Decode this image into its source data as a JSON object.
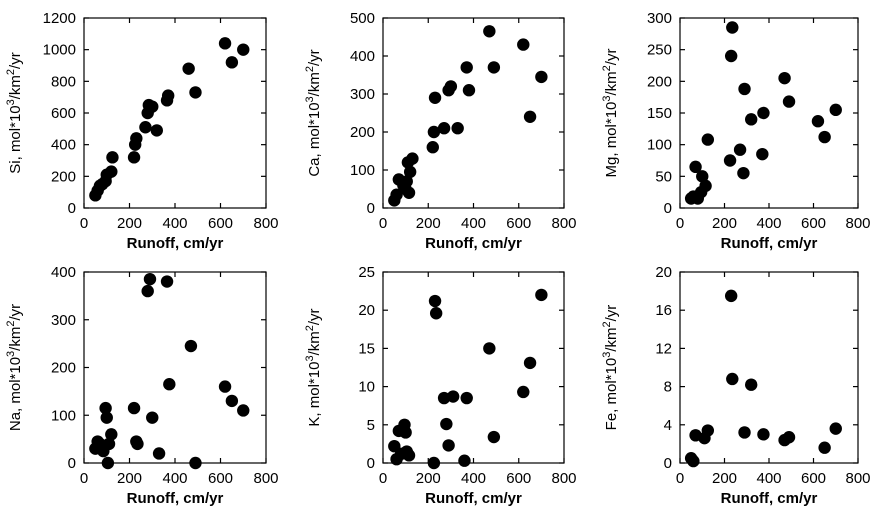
{
  "chart_data": [
    {
      "type": "scatter",
      "xlabel": "Runoff, cm/yr",
      "ylabel": {
        "pre": "Si, mol*10",
        "sup1": "3",
        "mid": "/km",
        "sup2": "2",
        "post": "/yr"
      },
      "xlim": [
        0,
        800
      ],
      "ylim": [
        0,
        1200
      ],
      "xticks": [
        0,
        200,
        400,
        600,
        800
      ],
      "yticks": [
        0,
        200,
        400,
        600,
        800,
        1000,
        1200
      ],
      "points": [
        [
          50,
          80
        ],
        [
          60,
          110
        ],
        [
          70,
          140
        ],
        [
          80,
          150
        ],
        [
          95,
          170
        ],
        [
          100,
          210
        ],
        [
          120,
          230
        ],
        [
          125,
          320
        ],
        [
          220,
          320
        ],
        [
          225,
          400
        ],
        [
          230,
          440
        ],
        [
          270,
          510
        ],
        [
          280,
          600
        ],
        [
          285,
          650
        ],
        [
          300,
          640
        ],
        [
          320,
          490
        ],
        [
          365,
          680
        ],
        [
          370,
          710
        ],
        [
          460,
          880
        ],
        [
          490,
          730
        ],
        [
          620,
          1040
        ],
        [
          650,
          920
        ],
        [
          700,
          1000
        ]
      ]
    },
    {
      "type": "scatter",
      "xlabel": "Runoff, cm/yr",
      "ylabel": {
        "pre": "Ca, mol*10",
        "sup1": "3",
        "mid": "/km",
        "sup2": "2",
        "post": "/yr"
      },
      "xlim": [
        0,
        800
      ],
      "ylim": [
        0,
        500
      ],
      "xticks": [
        0,
        200,
        400,
        600,
        800
      ],
      "yticks": [
        0,
        100,
        200,
        300,
        400,
        500
      ],
      "points": [
        [
          50,
          20
        ],
        [
          60,
          35
        ],
        [
          70,
          75
        ],
        [
          90,
          60
        ],
        [
          100,
          50
        ],
        [
          105,
          70
        ],
        [
          110,
          120
        ],
        [
          115,
          40
        ],
        [
          120,
          95
        ],
        [
          130,
          130
        ],
        [
          220,
          160
        ],
        [
          225,
          200
        ],
        [
          230,
          290
        ],
        [
          270,
          210
        ],
        [
          290,
          310
        ],
        [
          300,
          320
        ],
        [
          330,
          210
        ],
        [
          370,
          370
        ],
        [
          380,
          310
        ],
        [
          470,
          465
        ],
        [
          490,
          370
        ],
        [
          620,
          430
        ],
        [
          650,
          240
        ],
        [
          700,
          345
        ]
      ]
    },
    {
      "type": "scatter",
      "xlabel": "Runoff, cm/yr",
      "ylabel": {
        "pre": "Mg, mol*10",
        "sup1": "3",
        "mid": "/km",
        "sup2": "2",
        "post": "/yr"
      },
      "xlim": [
        0,
        800
      ],
      "ylim": [
        0,
        300
      ],
      "xticks": [
        0,
        200,
        400,
        600,
        800
      ],
      "yticks": [
        0,
        50,
        100,
        150,
        200,
        250,
        300
      ],
      "points": [
        [
          50,
          15
        ],
        [
          60,
          18
        ],
        [
          70,
          65
        ],
        [
          80,
          15
        ],
        [
          95,
          25
        ],
        [
          100,
          50
        ],
        [
          115,
          35
        ],
        [
          125,
          108
        ],
        [
          225,
          75
        ],
        [
          230,
          240
        ],
        [
          235,
          285
        ],
        [
          270,
          92
        ],
        [
          285,
          55
        ],
        [
          290,
          188
        ],
        [
          320,
          140
        ],
        [
          370,
          85
        ],
        [
          375,
          150
        ],
        [
          470,
          205
        ],
        [
          490,
          168
        ],
        [
          620,
          137
        ],
        [
          650,
          112
        ],
        [
          700,
          155
        ]
      ]
    },
    {
      "type": "scatter",
      "xlabel": "Runoff, cm/yr",
      "ylabel": {
        "pre": "Na, mol*10",
        "sup1": "3",
        "mid": "/km",
        "sup2": "2",
        "post": "/yr"
      },
      "xlim": [
        0,
        800
      ],
      "ylim": [
        0,
        400
      ],
      "xticks": [
        0,
        200,
        400,
        600,
        800
      ],
      "yticks": [
        0,
        100,
        200,
        300,
        400
      ],
      "points": [
        [
          50,
          30
        ],
        [
          60,
          45
        ],
        [
          70,
          40
        ],
        [
          85,
          25
        ],
        [
          95,
          115
        ],
        [
          100,
          95
        ],
        [
          105,
          0
        ],
        [
          110,
          40
        ],
        [
          120,
          60
        ],
        [
          220,
          115
        ],
        [
          230,
          45
        ],
        [
          235,
          40
        ],
        [
          280,
          360
        ],
        [
          290,
          385
        ],
        [
          300,
          95
        ],
        [
          330,
          20
        ],
        [
          365,
          380
        ],
        [
          375,
          165
        ],
        [
          470,
          245
        ],
        [
          490,
          0
        ],
        [
          620,
          160
        ],
        [
          650,
          130
        ],
        [
          700,
          110
        ]
      ]
    },
    {
      "type": "scatter",
      "xlabel": "Runoff, cm/yr",
      "ylabel": {
        "pre": "K, mol*10",
        "sup1": "3",
        "mid": "/km",
        "sup2": "2",
        "post": "/yr"
      },
      "xlim": [
        0,
        800
      ],
      "ylim": [
        0,
        25
      ],
      "xticks": [
        0,
        200,
        400,
        600,
        800
      ],
      "yticks": [
        0,
        5,
        10,
        15,
        20,
        25
      ],
      "points": [
        [
          50,
          2.2
        ],
        [
          60,
          0.5
        ],
        [
          70,
          4.2
        ],
        [
          80,
          1.2
        ],
        [
          95,
          5.0
        ],
        [
          100,
          4.0
        ],
        [
          105,
          1.5
        ],
        [
          115,
          1.0
        ],
        [
          225,
          0
        ],
        [
          230,
          21.2
        ],
        [
          235,
          19.6
        ],
        [
          270,
          8.5
        ],
        [
          280,
          5.1
        ],
        [
          290,
          2.3
        ],
        [
          310,
          8.7
        ],
        [
          360,
          0.3
        ],
        [
          370,
          8.5
        ],
        [
          470,
          15.0
        ],
        [
          490,
          3.4
        ],
        [
          620,
          9.3
        ],
        [
          650,
          13.1
        ],
        [
          700,
          22.0
        ]
      ]
    },
    {
      "type": "scatter",
      "xlabel": "Runoff, cm/yr",
      "ylabel": {
        "pre": "Fe, mol*10",
        "sup1": "3",
        "mid": "/km",
        "sup2": "2",
        "post": "/yr"
      },
      "xlim": [
        0,
        800
      ],
      "ylim": [
        0,
        20
      ],
      "xticks": [
        0,
        200,
        400,
        600,
        800
      ],
      "yticks": [
        0,
        4,
        8,
        12,
        16,
        20
      ],
      "points": [
        [
          50,
          0.5
        ],
        [
          60,
          0.2
        ],
        [
          70,
          2.9
        ],
        [
          110,
          2.6
        ],
        [
          125,
          3.4
        ],
        [
          230,
          17.5
        ],
        [
          235,
          8.8
        ],
        [
          290,
          3.2
        ],
        [
          320,
          8.2
        ],
        [
          375,
          3.0
        ],
        [
          470,
          2.4
        ],
        [
          490,
          2.7
        ],
        [
          650,
          1.6
        ],
        [
          700,
          3.6
        ]
      ]
    }
  ]
}
